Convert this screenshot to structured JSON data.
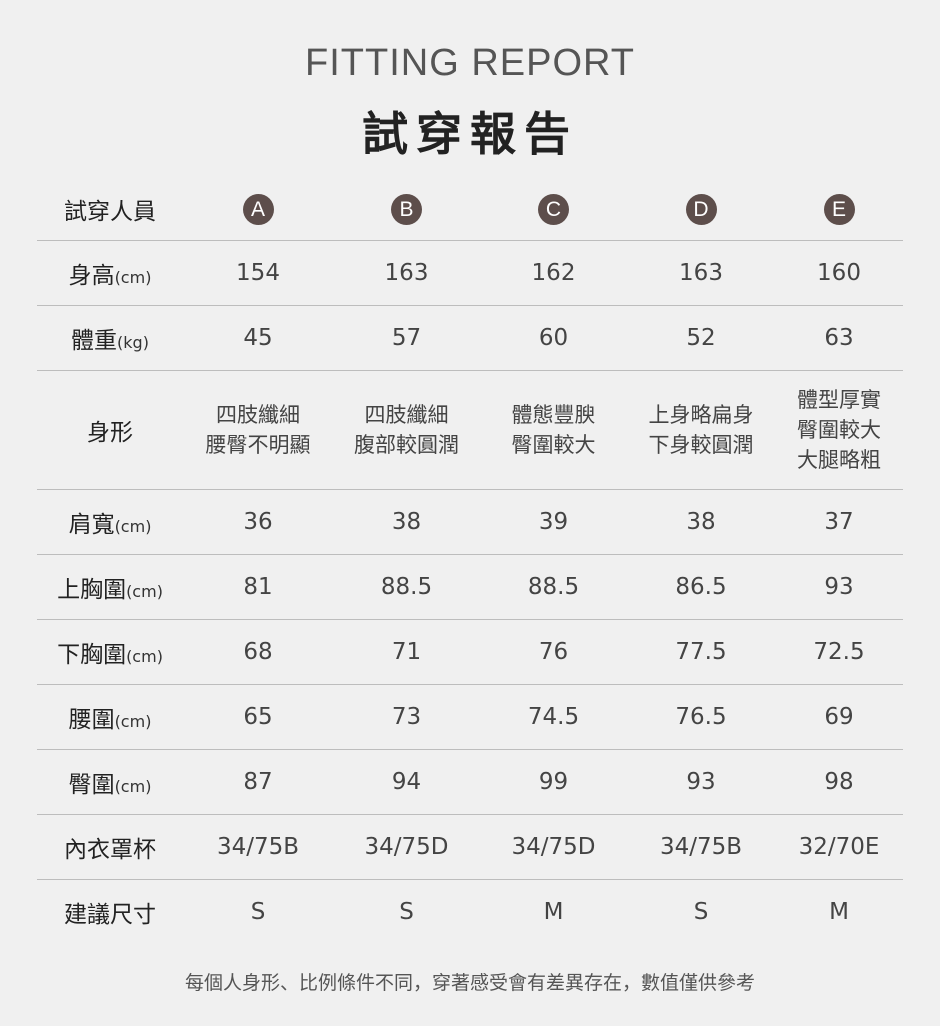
{
  "header": {
    "subtitle": "FITTING REPORT",
    "title": "試穿報告"
  },
  "table": {
    "head_label": "試穿人員",
    "testers": [
      "A",
      "B",
      "C",
      "D",
      "E"
    ],
    "badge_color": "#5d4e4b",
    "rows": [
      {
        "label": "身高",
        "unit": "(cm)",
        "values": [
          "154",
          "163",
          "162",
          "163",
          "160"
        ]
      },
      {
        "label": "體重",
        "unit": "(kg)",
        "values": [
          "45",
          "57",
          "60",
          "52",
          "63"
        ]
      },
      {
        "label": "身形",
        "unit": "",
        "values": [
          "四肢纖細\n腰臀不明顯",
          "四肢纖細\n腹部較圓潤",
          "體態豐腴\n臀圍較大",
          "上身略扁身\n下身較圓潤",
          "體型厚實\n臀圍較大\n大腿略粗"
        ]
      },
      {
        "label": "肩寬",
        "unit": "(cm)",
        "values": [
          "36",
          "38",
          "39",
          "38",
          "37"
        ]
      },
      {
        "label": "上胸圍",
        "unit": "(cm)",
        "values": [
          "81",
          "88.5",
          "88.5",
          "86.5",
          "93"
        ]
      },
      {
        "label": "下胸圍",
        "unit": "(cm)",
        "values": [
          "68",
          "71",
          "76",
          "77.5",
          "72.5"
        ]
      },
      {
        "label": "腰圍",
        "unit": "(cm)",
        "values": [
          "65",
          "73",
          "74.5",
          "76.5",
          "69"
        ]
      },
      {
        "label": "臀圍",
        "unit": "(cm)",
        "values": [
          "87",
          "94",
          "99",
          "93",
          "98"
        ]
      },
      {
        "label": "內衣罩杯",
        "unit": "",
        "values": [
          "34/75B",
          "34/75D",
          "34/75D",
          "34/75B",
          "32/70E"
        ]
      },
      {
        "label": "建議尺寸",
        "unit": "",
        "values": [
          "S",
          "S",
          "M",
          "S",
          "M"
        ]
      }
    ]
  },
  "footer": {
    "note": "每個人身形、比例條件不同，穿著感受會有差異存在，數值僅供參考"
  }
}
